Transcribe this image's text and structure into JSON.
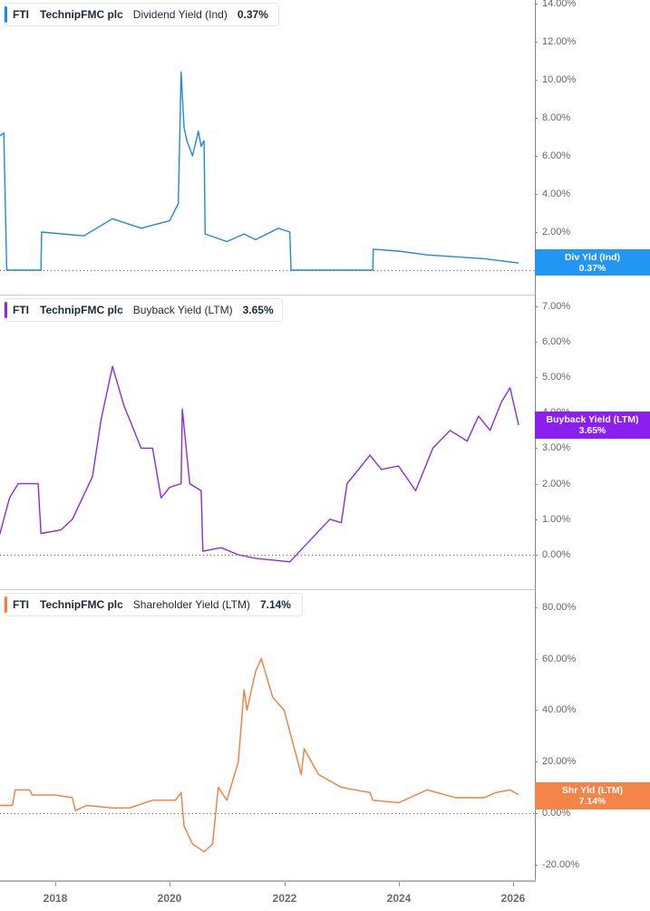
{
  "ticker": "FTI",
  "company": "TechnipFMC plc",
  "x_axis": {
    "labels": [
      "2018",
      "2020",
      "2022",
      "2024",
      "2026"
    ]
  },
  "panels": [
    {
      "metric": "Dividend Yield (Ind)",
      "value": "0.37%",
      "badge_label": "Div Yld (Ind)",
      "badge_value": "0.37%",
      "color": "#1e88e5",
      "badge_color": "#2196f3",
      "ticks": [
        "14.00%",
        "12.00%",
        "10.00%",
        "8.00%",
        "6.00%",
        "4.00%",
        "2.00%",
        "0.00%"
      ]
    },
    {
      "metric": "Buyback Yield (LTM)",
      "value": "3.65%",
      "badge_label": "Buyback Yield (LTM)",
      "badge_value": "3.65%",
      "color": "#8a2be2",
      "badge_color": "#8b1ff0",
      "ticks": [
        "7.00%",
        "6.00%",
        "5.00%",
        "4.00%",
        "3.00%",
        "2.00%",
        "1.00%",
        "0.00%"
      ]
    },
    {
      "metric": "Shareholder Yield (LTM)",
      "value": "7.14%",
      "badge_label": "Shr Yld (LTM)",
      "badge_value": "7.14%",
      "color": "#f47c3c",
      "badge_color": "#f5844a",
      "ticks": [
        "80.00%",
        "60.00%",
        "40.00%",
        "20.00%",
        "0.00%",
        "-20.00%"
      ]
    }
  ],
  "chart_data": [
    {
      "type": "line",
      "title": "FTI TechnipFMC plc Dividend Yield (Ind) 0.37%",
      "xlabel": "",
      "ylabel": "",
      "ylim": [
        -0.5,
        14
      ],
      "x_ticks": [
        "2018",
        "2020",
        "2022",
        "2024",
        "2026"
      ],
      "y_ticks": [
        "0.00%",
        "2.00%",
        "4.00%",
        "6.00%",
        "8.00%",
        "10.00%",
        "12.00%",
        "14.00%"
      ],
      "grid": false,
      "legend_position": "top-left",
      "series": [
        {
          "name": "Dividend Yield (Ind)",
          "x": [
            2017.0,
            2017.1,
            2017.15,
            2017.75,
            2017.76,
            2018.5,
            2019.0,
            2019.5,
            2020.0,
            2020.15,
            2020.2,
            2020.25,
            2020.3,
            2020.4,
            2020.5,
            2020.55,
            2020.6,
            2020.62,
            2021.0,
            2021.3,
            2021.5,
            2021.9,
            2022.1,
            2022.12,
            2023.55,
            2023.56,
            2024.0,
            2024.5,
            2025.0,
            2025.5,
            2026.1
          ],
          "values": [
            7.0,
            7.2,
            0.0,
            0.0,
            2.0,
            1.8,
            2.7,
            2.2,
            2.6,
            3.5,
            10.4,
            7.5,
            6.8,
            6.0,
            7.3,
            6.5,
            6.8,
            1.9,
            1.5,
            1.9,
            1.6,
            2.2,
            2.0,
            0.0,
            0.0,
            1.1,
            1.0,
            0.8,
            0.7,
            0.6,
            0.37
          ]
        }
      ]
    },
    {
      "type": "line",
      "title": "FTI TechnipFMC plc Buyback Yield (LTM) 3.65%",
      "xlabel": "",
      "ylabel": "",
      "ylim": [
        -0.5,
        7.5
      ],
      "x_ticks": [
        "2018",
        "2020",
        "2022",
        "2024",
        "2026"
      ],
      "y_ticks": [
        "0.00%",
        "1.00%",
        "2.00%",
        "3.00%",
        "4.00%",
        "5.00%",
        "6.00%",
        "7.00%"
      ],
      "grid": false,
      "legend_position": "top-left",
      "series": [
        {
          "name": "Buyback Yield (LTM)",
          "x": [
            2017.0,
            2017.2,
            2017.35,
            2017.7,
            2017.75,
            2018.1,
            2018.3,
            2018.65,
            2018.8,
            2019.0,
            2019.2,
            2019.5,
            2019.7,
            2019.85,
            2020.0,
            2020.2,
            2020.22,
            2020.35,
            2020.55,
            2020.58,
            2020.9,
            2021.2,
            2021.5,
            2022.1,
            2022.8,
            2023.0,
            2023.1,
            2023.5,
            2023.7,
            2024.0,
            2024.3,
            2024.6,
            2024.9,
            2025.2,
            2025.4,
            2025.6,
            2025.8,
            2025.95,
            2026.1
          ],
          "values": [
            0.4,
            1.6,
            2.0,
            2.0,
            0.6,
            0.7,
            1.0,
            2.2,
            3.8,
            5.3,
            4.2,
            3.0,
            3.0,
            1.6,
            1.9,
            2.0,
            4.1,
            2.0,
            1.8,
            0.1,
            0.2,
            0.0,
            -0.1,
            -0.2,
            1.0,
            0.9,
            2.0,
            2.8,
            2.4,
            2.5,
            1.8,
            3.0,
            3.5,
            3.2,
            3.9,
            3.5,
            4.3,
            4.7,
            3.65
          ]
        }
      ]
    },
    {
      "type": "line",
      "title": "FTI TechnipFMC plc Shareholder Yield (LTM) 7.14%",
      "xlabel": "",
      "ylabel": "",
      "ylim": [
        -25,
        85
      ],
      "x_ticks": [
        "2018",
        "2020",
        "2022",
        "2024",
        "2026"
      ],
      "y_ticks": [
        "-20.00%",
        "0.00%",
        "20.00%",
        "40.00%",
        "60.00%",
        "80.00%"
      ],
      "grid": false,
      "legend_position": "top-left",
      "series": [
        {
          "name": "Shareholder Yield (LTM)",
          "x": [
            2017.0,
            2017.25,
            2017.3,
            2017.55,
            2017.6,
            2018.0,
            2018.3,
            2018.35,
            2018.55,
            2019.0,
            2019.3,
            2019.7,
            2020.1,
            2020.2,
            2020.25,
            2020.4,
            2020.6,
            2020.75,
            2020.85,
            2021.0,
            2021.2,
            2021.3,
            2021.35,
            2021.5,
            2021.6,
            2021.8,
            2022.0,
            2022.3,
            2022.35,
            2022.6,
            2023.0,
            2023.5,
            2023.55,
            2024.0,
            2024.5,
            2025.0,
            2025.5,
            2025.7,
            2025.95,
            2026.1
          ],
          "values": [
            3,
            3,
            9,
            9,
            7,
            7,
            6,
            1,
            3,
            2,
            2,
            5,
            5,
            8,
            -5,
            -12,
            -15,
            -12,
            10,
            5,
            20,
            48,
            40,
            55,
            60,
            45,
            40,
            15,
            25,
            15,
            10,
            8,
            5,
            4,
            9,
            6,
            6,
            8,
            9,
            7.14
          ]
        }
      ]
    }
  ]
}
